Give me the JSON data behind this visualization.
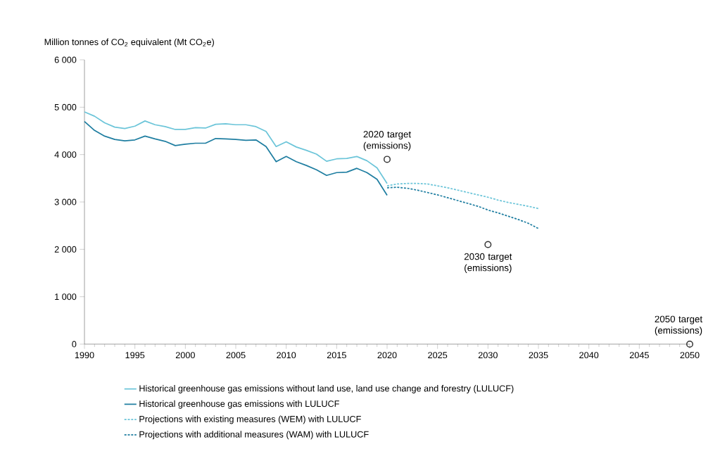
{
  "chart_data": {
    "type": "line",
    "ylabel": "Million tonnes of CO$_{2}$ equivalent (Mt CO$_{2}$e)",
    "xlim": [
      1990,
      2050
    ],
    "xticks": [
      1990,
      1995,
      2000,
      2005,
      2010,
      2015,
      2020,
      2025,
      2030,
      2035,
      2040,
      2045,
      2050
    ],
    "ylim": [
      0,
      6000
    ],
    "yticks": [
      0,
      {
        "value": 1000,
        "label": "1 000"
      },
      {
        "value": 2000,
        "label": "2 000"
      },
      {
        "value": 3000,
        "label": "3 000"
      },
      {
        "value": 4000,
        "label": "4 000"
      },
      {
        "value": 5000,
        "label": "5 000"
      },
      {
        "value": 6000,
        "label": "6 000"
      }
    ],
    "legend": "bottom",
    "series": [
      {
        "name": "Historical greenhouse gas emissions without land use, land use change and forestry (LULUCF)",
        "color": "#6cc5d9",
        "line_style": "solid",
        "x": [
          1990,
          1991,
          1992,
          1993,
          1994,
          1995,
          1996,
          1997,
          1998,
          1999,
          2000,
          2001,
          2002,
          2003,
          2004,
          2005,
          2006,
          2007,
          2008,
          2009,
          2010,
          2011,
          2012,
          2013,
          2014,
          2015,
          2016,
          2017,
          2018,
          2019,
          2020
        ],
        "values": [
          4900,
          4810,
          4670,
          4580,
          4550,
          4600,
          4710,
          4630,
          4590,
          4530,
          4530,
          4570,
          4560,
          4640,
          4650,
          4630,
          4630,
          4590,
          4490,
          4170,
          4270,
          4160,
          4090,
          4010,
          3860,
          3910,
          3920,
          3960,
          3870,
          3720,
          3390
        ]
      },
      {
        "name": "Historical greenhouse gas emissions with LULUCF",
        "color": "#1f7ea1",
        "line_style": "solid",
        "x": [
          1990,
          1991,
          1992,
          1993,
          1994,
          1995,
          1996,
          1997,
          1998,
          1999,
          2000,
          2001,
          2002,
          2003,
          2004,
          2005,
          2006,
          2007,
          2008,
          2009,
          2010,
          2011,
          2012,
          2013,
          2014,
          2015,
          2016,
          2017,
          2018,
          2019,
          2020
        ],
        "values": [
          4700,
          4510,
          4390,
          4320,
          4290,
          4310,
          4390,
          4330,
          4280,
          4190,
          4220,
          4240,
          4240,
          4340,
          4330,
          4320,
          4300,
          4310,
          4170,
          3850,
          3960,
          3850,
          3770,
          3680,
          3560,
          3620,
          3630,
          3710,
          3620,
          3480,
          3140
        ]
      },
      {
        "name": "Projections with existing measures (WEM) with LULUCF",
        "color": "#6cc5d9",
        "line_style": "dashed",
        "x": [
          2020,
          2021,
          2022,
          2023,
          2024,
          2025,
          2026,
          2027,
          2028,
          2029,
          2030,
          2031,
          2032,
          2033,
          2034,
          2035
        ],
        "values": [
          3340,
          3380,
          3390,
          3390,
          3380,
          3340,
          3300,
          3250,
          3200,
          3150,
          3100,
          3040,
          2990,
          2950,
          2910,
          2860
        ]
      },
      {
        "name": "Projections with additional measures (WAM) with LULUCF",
        "color": "#1f7ea1",
        "line_style": "dashed",
        "x": [
          2020,
          2021,
          2022,
          2023,
          2024,
          2025,
          2026,
          2027,
          2028,
          2029,
          2030,
          2031,
          2032,
          2033,
          2034,
          2035
        ],
        "values": [
          3300,
          3310,
          3290,
          3250,
          3200,
          3150,
          3090,
          3030,
          2970,
          2910,
          2830,
          2770,
          2700,
          2630,
          2550,
          2440
        ]
      },
      {
        "type": "scatter",
        "marker": "circle",
        "color": "#333333",
        "x": [
          2020,
          2030,
          2050
        ],
        "values": [
          3900,
          2100,
          0
        ]
      }
    ],
    "annotations": [
      {
        "text": "2020 target (emissions)",
        "x": 2020,
        "y": 3900
      },
      {
        "text": "2030 target (emissions)",
        "x": 2030,
        "y": 2100
      },
      {
        "text": "2050 target (emissions)",
        "x": 2050,
        "y": 0
      }
    ]
  }
}
